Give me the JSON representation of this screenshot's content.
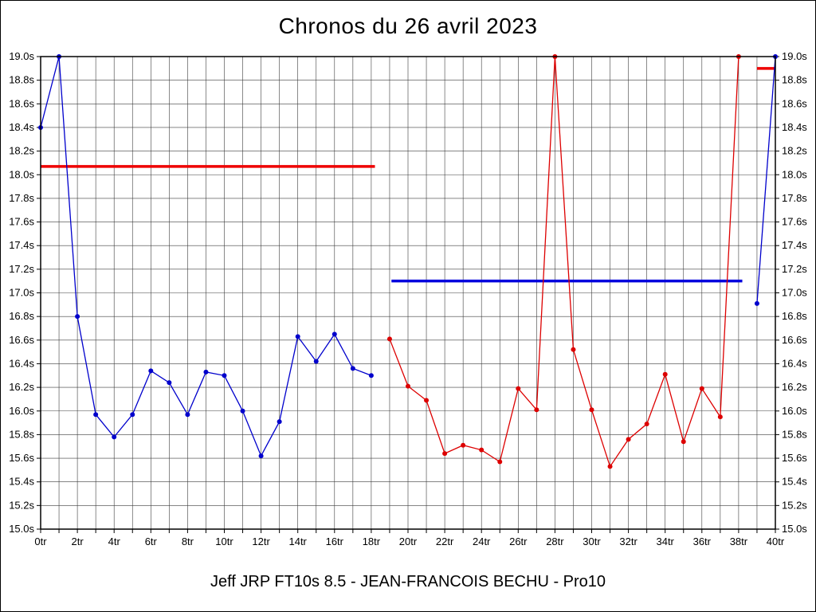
{
  "chart_data": {
    "type": "line",
    "title": "Chronos du 26 avril 2023",
    "footer": "Jeff JRP FT10s 8.5 - JEAN-FRANCOIS BECHU - Pro10",
    "xlabel": "",
    "ylabel": "",
    "xlim": [
      0,
      40
    ],
    "ylim": [
      15.0,
      19.0
    ],
    "x_grid_interval": 1,
    "x_label_interval": 2,
    "y_tick_interval": 0.2,
    "grid": true,
    "legend": false,
    "x_ticks": [
      "0tr",
      "2tr",
      "4tr",
      "6tr",
      "8tr",
      "10tr",
      "12tr",
      "14tr",
      "16tr",
      "18tr",
      "20tr",
      "22tr",
      "24tr",
      "26tr",
      "28tr",
      "30tr",
      "32tr",
      "34tr",
      "36tr",
      "38tr",
      "40tr"
    ],
    "y_ticks": [
      "15.0s",
      "15.2s",
      "15.4s",
      "15.6s",
      "15.8s",
      "16.0s",
      "16.2s",
      "16.4s",
      "16.6s",
      "16.8s",
      "17.0s",
      "17.2s",
      "17.4s",
      "17.6s",
      "17.8s",
      "18.0s",
      "18.2s",
      "18.4s",
      "18.6s",
      "18.8s",
      "19.0s"
    ],
    "series": [
      {
        "name": "series-run1-blue",
        "color": "#0000cc",
        "x": [
          0,
          1,
          2,
          3,
          4,
          5,
          6,
          7,
          8,
          9,
          10,
          11,
          12,
          13,
          14,
          15,
          16,
          17,
          18
        ],
        "values": [
          18.4,
          19.0,
          16.8,
          15.97,
          15.78,
          15.97,
          16.34,
          16.24,
          15.97,
          16.33,
          16.3,
          16.0,
          15.62,
          15.91,
          16.63,
          16.42,
          16.65,
          16.36,
          16.3
        ]
      },
      {
        "name": "series-run2-red",
        "color": "#dd0000",
        "x": [
          19,
          20,
          21,
          22,
          23,
          24,
          25,
          26,
          27,
          28,
          29,
          30,
          31,
          32,
          33,
          34,
          35,
          36,
          37,
          38
        ],
        "values": [
          16.61,
          16.21,
          16.09,
          15.64,
          15.71,
          15.67,
          15.57,
          16.19,
          16.01,
          19.0,
          16.52,
          16.01,
          15.53,
          15.76,
          15.89,
          16.31,
          15.74,
          16.19,
          15.95,
          19.0
        ]
      },
      {
        "name": "series-run3-blue",
        "color": "#0000cc",
        "x": [
          39,
          40
        ],
        "values": [
          16.91,
          19.0
        ]
      }
    ],
    "reference_lines": [
      {
        "name": "red-average-line",
        "color": "#ee0000",
        "y": 18.07,
        "x_start": 0,
        "x_end": 18.2
      },
      {
        "name": "blue-average-line",
        "color": "#0000dd",
        "y": 17.1,
        "x_start": 19.1,
        "x_end": 38.2
      },
      {
        "name": "red-average-line-2",
        "color": "#ee0000",
        "y": 18.9,
        "x_start": 39.0,
        "x_end": 40
      }
    ]
  }
}
